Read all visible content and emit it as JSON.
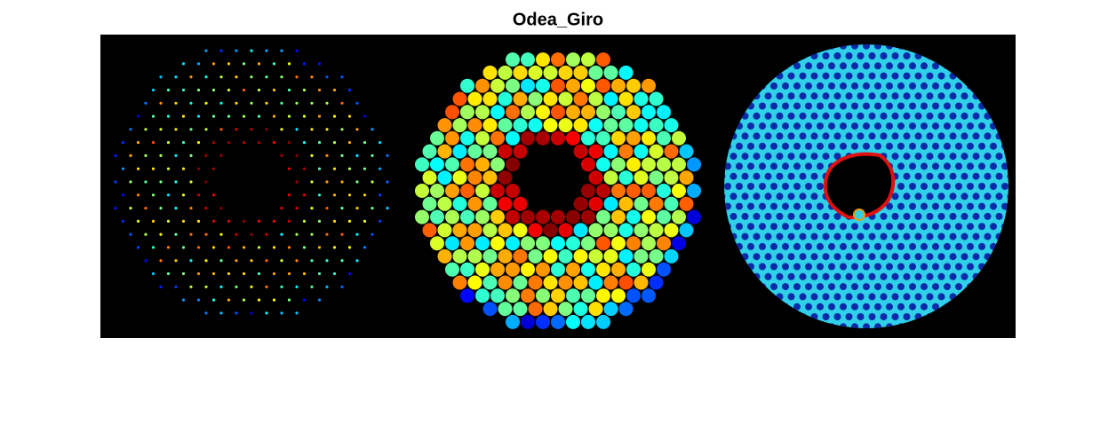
{
  "title": "Odea_Giro"
}
